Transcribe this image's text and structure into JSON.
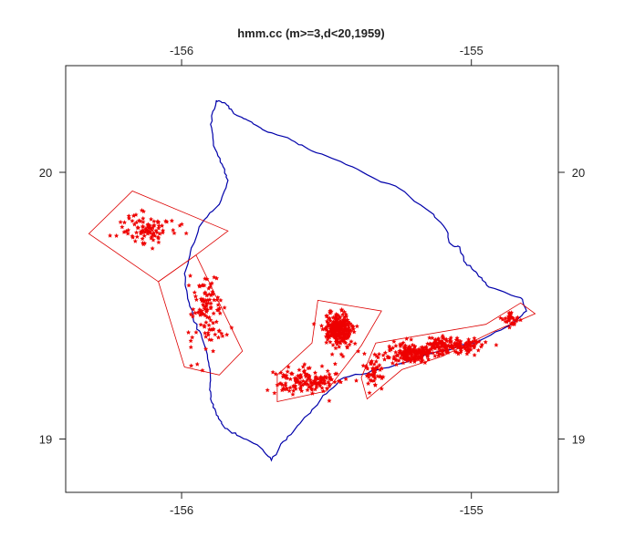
{
  "chart_data": {
    "type": "scatter",
    "title": "hmm.cc (m>=3,d<20,1959)",
    "xlim": [
      -156.4,
      -154.7
    ],
    "ylim": [
      18.8,
      20.4
    ],
    "x_ticks": [
      -156,
      -155
    ],
    "y_ticks": [
      19,
      20
    ],
    "x_tick_labels": [
      "-156",
      "-155"
    ],
    "y_tick_labels": [
      "19",
      "20"
    ],
    "axes_on": [
      "bottom",
      "top",
      "left",
      "right"
    ],
    "colors": {
      "coastline": "#0000aa",
      "zones": "#dd0000",
      "events": "#ee0000"
    },
    "marker": "star",
    "coastline": [
      [
        -155.88,
        20.27
      ],
      [
        -155.85,
        20.26
      ],
      [
        -155.82,
        20.22
      ],
      [
        -155.78,
        20.2
      ],
      [
        -155.72,
        20.16
      ],
      [
        -155.62,
        20.12
      ],
      [
        -155.55,
        20.08
      ],
      [
        -155.45,
        20.04
      ],
      [
        -155.34,
        19.98
      ],
      [
        -155.25,
        19.94
      ],
      [
        -155.14,
        19.85
      ],
      [
        -155.09,
        19.79
      ],
      [
        -155.07,
        19.73
      ],
      [
        -155.04,
        19.72
      ],
      [
        -155.02,
        19.66
      ],
      [
        -154.98,
        19.62
      ],
      [
        -154.94,
        19.57
      ],
      [
        -154.83,
        19.53
      ],
      [
        -154.81,
        19.48
      ],
      [
        -154.86,
        19.43
      ],
      [
        -154.97,
        19.37
      ],
      [
        -155.1,
        19.33
      ],
      [
        -155.22,
        19.29
      ],
      [
        -155.32,
        19.26
      ],
      [
        -155.44,
        19.23
      ],
      [
        -155.5,
        19.17
      ],
      [
        -155.55,
        19.11
      ],
      [
        -155.6,
        19.05
      ],
      [
        -155.65,
        18.99
      ],
      [
        -155.69,
        18.92
      ],
      [
        -155.73,
        18.97
      ],
      [
        -155.8,
        19.01
      ],
      [
        -155.85,
        19.04
      ],
      [
        -155.88,
        19.09
      ],
      [
        -155.9,
        19.15
      ],
      [
        -155.9,
        19.22
      ],
      [
        -155.91,
        19.3
      ],
      [
        -155.93,
        19.38
      ],
      [
        -155.96,
        19.45
      ],
      [
        -155.98,
        19.54
      ],
      [
        -155.99,
        19.62
      ],
      [
        -155.97,
        19.7
      ],
      [
        -155.93,
        19.81
      ],
      [
        -155.87,
        19.88
      ],
      [
        -155.84,
        19.97
      ],
      [
        -155.86,
        20.03
      ],
      [
        -155.89,
        20.1
      ],
      [
        -155.9,
        20.18
      ],
      [
        -155.88,
        20.27
      ]
    ],
    "zones": [
      {
        "label": "",
        "polygon": [
          [
            -156.32,
            19.77
          ],
          [
            -156.17,
            19.93
          ],
          [
            -155.84,
            19.78
          ],
          [
            -155.95,
            19.69
          ],
          [
            -156.08,
            19.59
          ]
        ]
      },
      {
        "label": "",
        "polygon": [
          [
            -156.08,
            19.59
          ],
          [
            -155.95,
            19.69
          ],
          [
            -155.79,
            19.33
          ],
          [
            -155.87,
            19.24
          ],
          [
            -155.99,
            19.27
          ]
        ]
      },
      {
        "label": "",
        "polygon": [
          [
            -155.53,
            19.52
          ],
          [
            -155.31,
            19.48
          ],
          [
            -155.38,
            19.35
          ],
          [
            -155.5,
            19.18
          ],
          [
            -155.67,
            19.14
          ],
          [
            -155.67,
            19.24
          ],
          [
            -155.55,
            19.36
          ]
        ]
      },
      {
        "label": "",
        "polygon": [
          [
            -154.83,
            19.51
          ],
          [
            -154.78,
            19.47
          ],
          [
            -154.93,
            19.4
          ],
          [
            -155.1,
            19.31
          ],
          [
            -155.24,
            19.26
          ],
          [
            -155.36,
            19.15
          ],
          [
            -155.38,
            19.23
          ],
          [
            -155.33,
            19.36
          ],
          [
            -154.95,
            19.43
          ]
        ]
      }
    ],
    "clusters": [
      {
        "center": [
          -156.12,
          19.79
        ],
        "spread": [
          0.08,
          0.05
        ],
        "count": 95
      },
      {
        "center": [
          -155.91,
          19.48
        ],
        "spread": [
          0.05,
          0.12
        ],
        "count": 110
      },
      {
        "center": [
          -155.46,
          19.41
        ],
        "spread": [
          0.04,
          0.05
        ],
        "count": 260
      },
      {
        "center": [
          -155.57,
          19.22
        ],
        "spread": [
          0.09,
          0.04
        ],
        "count": 150
      },
      {
        "center": [
          -155.21,
          19.32
        ],
        "spread": [
          0.07,
          0.03
        ],
        "count": 170
      },
      {
        "center": [
          -155.07,
          19.35
        ],
        "spread": [
          0.09,
          0.03
        ],
        "count": 150
      },
      {
        "center": [
          -155.34,
          19.26
        ],
        "spread": [
          0.03,
          0.05
        ],
        "count": 50
      },
      {
        "center": [
          -154.86,
          19.45
        ],
        "spread": [
          0.03,
          0.02
        ],
        "count": 30
      }
    ]
  }
}
